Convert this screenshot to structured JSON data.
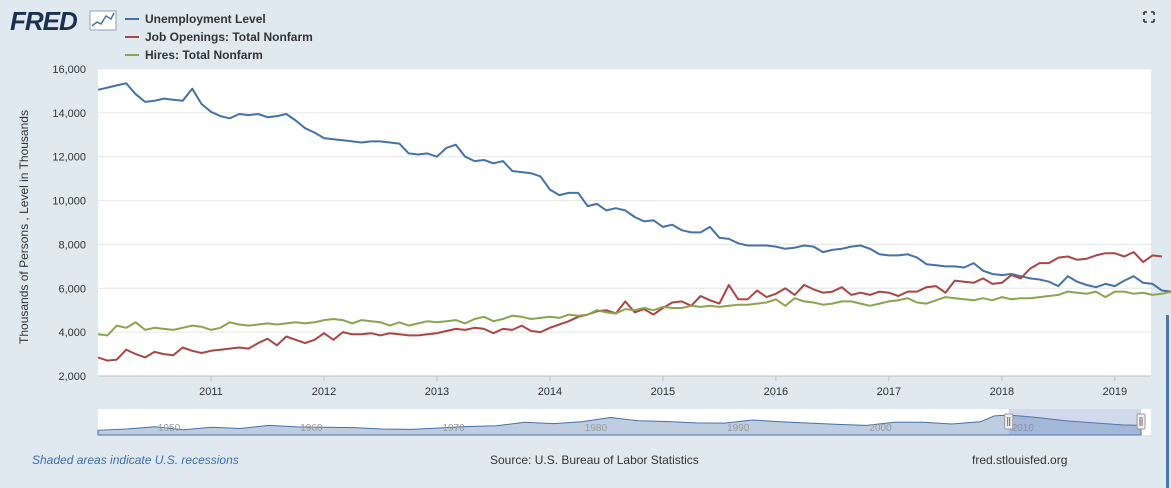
{
  "brand": {
    "logo_text": "FRED",
    "colors": {
      "background": "#e1e9f0",
      "plot_background": "#ffffff",
      "logo": "#1a3150",
      "navigator_fill": "#4572a7"
    }
  },
  "chart_data": {
    "type": "line",
    "ylabel": "Thousands of Persons , Level in Thousands",
    "xlabel": "",
    "ylim": [
      2000,
      16000
    ],
    "yticks": [
      2000,
      4000,
      6000,
      8000,
      10000,
      12000,
      14000,
      16000
    ],
    "ytick_labels": [
      "2,000",
      "4,000",
      "6,000",
      "8,000",
      "10,000",
      "12,000",
      "14,000",
      "16,000"
    ],
    "xlim": [
      2010.0,
      2019.32
    ],
    "xticks": [
      2011,
      2012,
      2013,
      2014,
      2015,
      2016,
      2017,
      2018,
      2019
    ],
    "xtick_labels": [
      "2011",
      "2012",
      "2013",
      "2014",
      "2015",
      "2016",
      "2017",
      "2018",
      "2019"
    ],
    "series": [
      {
        "name": "Unemployment Level",
        "color": "#4572a7",
        "start": 2010.0,
        "step_months": 1,
        "values": [
          15050,
          15150,
          15250,
          15350,
          14850,
          14500,
          14550,
          14650,
          14600,
          14550,
          15100,
          14400,
          14050,
          13850,
          13750,
          13950,
          13900,
          13950,
          13800,
          13850,
          13950,
          13650,
          13300,
          13100,
          12850,
          12800,
          12750,
          12700,
          12650,
          12700,
          12700,
          12650,
          12600,
          12150,
          12100,
          12150,
          12000,
          12400,
          12550,
          12000,
          11800,
          11850,
          11700,
          11800,
          11350,
          11300,
          11250,
          11100,
          10500,
          10250,
          10350,
          10350,
          9750,
          9850,
          9550,
          9650,
          9550,
          9250,
          9050,
          9100,
          8800,
          8900,
          8650,
          8550,
          8550,
          8800,
          8300,
          8250,
          8050,
          7950,
          7950,
          7950,
          7900,
          7800,
          7850,
          7950,
          7900,
          7650,
          7750,
          7800,
          7900,
          7950,
          7800,
          7550,
          7500,
          7500,
          7550,
          7400,
          7100,
          7050,
          7000,
          7000,
          6950,
          7150,
          6800,
          6650,
          6600,
          6650,
          6550,
          6450,
          6400,
          6300,
          6100,
          6550,
          6300,
          6150,
          6050,
          6200,
          6100,
          6350,
          6550,
          6250,
          6200,
          5900,
          5850
        ]
      },
      {
        "name": "Job Openings: Total Nonfarm",
        "color": "#aa4643",
        "start": 2010.0,
        "step_months": 1,
        "values": [
          2850,
          2700,
          2750,
          3200,
          3000,
          2850,
          3100,
          3000,
          2950,
          3300,
          3150,
          3050,
          3150,
          3200,
          3250,
          3300,
          3250,
          3500,
          3700,
          3400,
          3800,
          3650,
          3500,
          3650,
          3950,
          3650,
          4000,
          3900,
          3900,
          3950,
          3850,
          3950,
          3900,
          3850,
          3850,
          3900,
          3950,
          4050,
          4150,
          4100,
          4200,
          4150,
          3950,
          4150,
          4100,
          4300,
          4050,
          4000,
          4200,
          4350,
          4500,
          4700,
          4800,
          4950,
          5000,
          4850,
          5400,
          4900,
          5050,
          4800,
          5100,
          5350,
          5400,
          5200,
          5650,
          5450,
          5300,
          6150,
          5500,
          5500,
          5900,
          5600,
          5750,
          6000,
          5700,
          6150,
          5950,
          5800,
          5850,
          6050,
          5700,
          5800,
          5700,
          5850,
          5800,
          5650,
          5850,
          5850,
          6050,
          6100,
          5800,
          6350,
          6300,
          6250,
          6450,
          6200,
          6250,
          6600,
          6450,
          6900,
          7150,
          7150,
          7400,
          7450,
          7300,
          7350,
          7500,
          7600,
          7600,
          7450,
          7650,
          7200,
          7500,
          7450
        ]
      },
      {
        "name": "Hires: Total Nonfarm",
        "color": "#89a54e",
        "start": 2010.0,
        "step_months": 1,
        "values": [
          3900,
          3850,
          4300,
          4200,
          4450,
          4100,
          4200,
          4150,
          4100,
          4200,
          4300,
          4250,
          4100,
          4200,
          4450,
          4350,
          4300,
          4350,
          4400,
          4350,
          4400,
          4450,
          4400,
          4450,
          4550,
          4600,
          4550,
          4400,
          4550,
          4500,
          4450,
          4300,
          4450,
          4300,
          4400,
          4500,
          4450,
          4500,
          4550,
          4400,
          4600,
          4700,
          4500,
          4600,
          4750,
          4700,
          4600,
          4650,
          4700,
          4650,
          4800,
          4750,
          4800,
          5000,
          4900,
          4850,
          5050,
          5000,
          5100,
          5000,
          5150,
          5100,
          5100,
          5200,
          5150,
          5200,
          5150,
          5200,
          5250,
          5250,
          5300,
          5350,
          5500,
          5200,
          5550,
          5400,
          5350,
          5250,
          5300,
          5400,
          5400,
          5300,
          5200,
          5300,
          5400,
          5450,
          5550,
          5350,
          5300,
          5450,
          5600,
          5550,
          5500,
          5450,
          5550,
          5450,
          5600,
          5500,
          5550,
          5550,
          5600,
          5650,
          5700,
          5850,
          5800,
          5750,
          5850,
          5600,
          5850,
          5850,
          5750,
          5800,
          5700,
          5750,
          5850
        ]
      }
    ],
    "navigator": {
      "xtick_labels": [
        "1950",
        "1960",
        "1970",
        "1980",
        "1990",
        "2000",
        "2010"
      ],
      "xticks": [
        1950,
        1960,
        1970,
        1980,
        1990,
        2000,
        2010
      ],
      "xlim": [
        1946,
        2020
      ],
      "selection": [
        2010.0,
        2019.3
      ],
      "series": [
        {
          "x": 1946,
          "y": 0.15
        },
        {
          "x": 1948,
          "y": 0.22
        },
        {
          "x": 1950,
          "y": 0.35
        },
        {
          "x": 1952,
          "y": 0.18
        },
        {
          "x": 1954,
          "y": 0.32
        },
        {
          "x": 1956,
          "y": 0.25
        },
        {
          "x": 1958,
          "y": 0.42
        },
        {
          "x": 1960,
          "y": 0.34
        },
        {
          "x": 1962,
          "y": 0.32
        },
        {
          "x": 1964,
          "y": 0.3
        },
        {
          "x": 1966,
          "y": 0.22
        },
        {
          "x": 1968,
          "y": 0.2
        },
        {
          "x": 1970,
          "y": 0.28
        },
        {
          "x": 1972,
          "y": 0.36
        },
        {
          "x": 1974,
          "y": 0.4
        },
        {
          "x": 1976,
          "y": 0.6
        },
        {
          "x": 1978,
          "y": 0.52
        },
        {
          "x": 1980,
          "y": 0.62
        },
        {
          "x": 1982,
          "y": 0.86
        },
        {
          "x": 1984,
          "y": 0.68
        },
        {
          "x": 1986,
          "y": 0.64
        },
        {
          "x": 1988,
          "y": 0.56
        },
        {
          "x": 1990,
          "y": 0.55
        },
        {
          "x": 1992,
          "y": 0.72
        },
        {
          "x": 1994,
          "y": 0.62
        },
        {
          "x": 1996,
          "y": 0.55
        },
        {
          "x": 1998,
          "y": 0.48
        },
        {
          "x": 2000,
          "y": 0.42
        },
        {
          "x": 2002,
          "y": 0.6
        },
        {
          "x": 2004,
          "y": 0.6
        },
        {
          "x": 2006,
          "y": 0.5
        },
        {
          "x": 2008,
          "y": 0.62
        },
        {
          "x": 2009,
          "y": 0.95
        },
        {
          "x": 2010,
          "y": 1.0
        },
        {
          "x": 2012,
          "y": 0.86
        },
        {
          "x": 2014,
          "y": 0.68
        },
        {
          "x": 2016,
          "y": 0.56
        },
        {
          "x": 2018,
          "y": 0.45
        },
        {
          "x": 2019.3,
          "y": 0.42
        }
      ]
    }
  },
  "footer": {
    "recession_note": "Shaded areas indicate U.S. recessions",
    "source": "Source: U.S. Bureau of Labor Statistics",
    "site": "fred.stlouisfed.org"
  },
  "controls": {
    "fullscreen_icon": "fullscreen-icon"
  }
}
